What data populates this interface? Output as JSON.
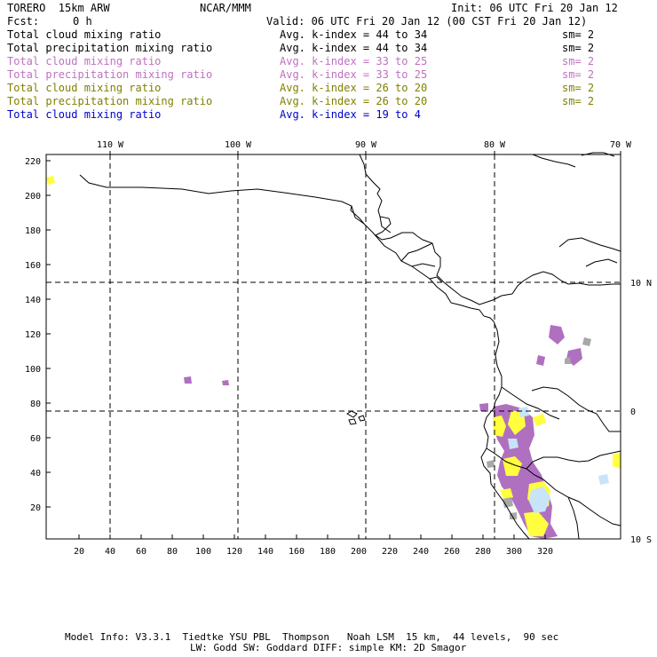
{
  "header": {
    "model": "TORERO  15km ARW",
    "center": "NCAR/MMM",
    "init": "Init: 06 UTC Fri 20 Jan 12",
    "fcst_label": "Fcst:",
    "fcst_value": "0 h",
    "valid": "Valid: 06 UTC Fri 20 Jan 12 (00 CST Fri 20 Jan 12)"
  },
  "legend": [
    {
      "field": "Total cloud mixing ratio",
      "index": "Avg. k-index = 44 to 34",
      "sm": "sm= 2",
      "color": "#000000"
    },
    {
      "field": "Total precipitation mixing ratio",
      "index": "Avg. k-index = 44 to 34",
      "sm": "sm= 2",
      "color": "#000000"
    },
    {
      "field": "Total cloud mixing ratio",
      "index": "Avg. k-index = 33 to 25",
      "sm": "sm= 2",
      "color": "#c070c0"
    },
    {
      "field": "Total precipitation mixing ratio",
      "index": "Avg. k-index = 33 to 25",
      "sm": "sm= 2",
      "color": "#c070c0"
    },
    {
      "field": "Total cloud mixing ratio",
      "index": "Avg. k-index = 26 to 20",
      "sm": "sm= 2",
      "color": "#808000"
    },
    {
      "field": "Total precipitation mixing ratio",
      "index": "Avg. k-index = 26 to 20",
      "sm": "sm= 2",
      "color": "#808000"
    },
    {
      "field": "Total cloud mixing ratio",
      "index": "Avg. k-index = 19 to 4",
      "sm": "",
      "color": "#0000cc"
    }
  ],
  "map": {
    "lon_labels": [
      "110 W",
      "100 W",
      "90 W",
      "80 W",
      "70 W"
    ],
    "lat_labels": [
      "10 N",
      "0",
      "10 S"
    ],
    "y_ticks": [
      "220",
      "200",
      "180",
      "160",
      "140",
      "120",
      "100",
      "80",
      "60",
      "40",
      "20"
    ],
    "x_ticks": [
      "20",
      "40",
      "60",
      "80",
      "100",
      "120",
      "140",
      "160",
      "180",
      "200",
      "220",
      "240",
      "260",
      "280",
      "300",
      "320"
    ],
    "field_colors": {
      "cloud_gray": "#a8a8a8",
      "purple": "#b070c0",
      "yellow": "#ffff40",
      "light_blue": "#c8e4f8"
    }
  },
  "footer": {
    "line1": "Model Info: V3.3.1  Tiedtke YSU PBL  Thompson   Noah LSM  15 km,  44 levels,  90 sec",
    "line2": "LW: Godd SW: Goddard DIFF: simple KM: 2D Smagor"
  }
}
